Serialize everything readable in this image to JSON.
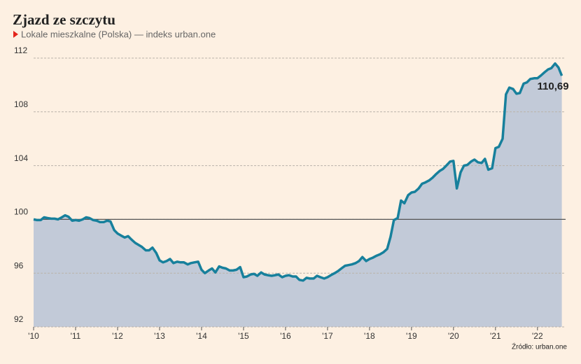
{
  "chart_data": {
    "type": "area",
    "title": "Zjazd ze szczytu",
    "subtitle": "Lokale mieszkalne (Polska) — indeks urban.one",
    "source": "Źródło: urban.one",
    "xlim": [
      2010,
      2022.67
    ],
    "ylim": [
      92,
      112
    ],
    "xticks": [
      {
        "value": 2010,
        "label": "'10"
      },
      {
        "value": 2011,
        "label": "'11"
      },
      {
        "value": 2012,
        "label": "'12"
      },
      {
        "value": 2013,
        "label": "'13"
      },
      {
        "value": 2014,
        "label": "'14"
      },
      {
        "value": 2015,
        "label": "'15"
      },
      {
        "value": 2016,
        "label": "'16"
      },
      {
        "value": 2017,
        "label": "'17"
      },
      {
        "value": 2018,
        "label": "'18"
      },
      {
        "value": 2019,
        "label": "'19"
      },
      {
        "value": 2020,
        "label": "'20"
      },
      {
        "value": 2021,
        "label": "'21"
      },
      {
        "value": 2022,
        "label": "'22"
      }
    ],
    "yticks": [
      92,
      96,
      100,
      104,
      108,
      112
    ],
    "grid": true,
    "reference_line": 100,
    "line_color": "#17809c",
    "fill_color": "#c2cad8",
    "annotations": [
      {
        "text": "110,69",
        "x": 2022.58,
        "y": 110.69
      }
    ],
    "x": [
      2010,
      2010.08,
      2010.17,
      2010.25,
      2010.33,
      2010.42,
      2010.5,
      2010.58,
      2010.67,
      2010.75,
      2010.83,
      2010.92,
      2011,
      2011.08,
      2011.17,
      2011.25,
      2011.33,
      2011.42,
      2011.5,
      2011.58,
      2011.67,
      2011.75,
      2011.83,
      2011.92,
      2012,
      2012.08,
      2012.17,
      2012.25,
      2012.33,
      2012.42,
      2012.5,
      2012.58,
      2012.67,
      2012.75,
      2012.83,
      2012.92,
      2013,
      2013.08,
      2013.17,
      2013.25,
      2013.33,
      2013.42,
      2013.5,
      2013.58,
      2013.67,
      2013.75,
      2013.83,
      2013.92,
      2014,
      2014.08,
      2014.17,
      2014.25,
      2014.33,
      2014.42,
      2014.5,
      2014.58,
      2014.67,
      2014.75,
      2014.83,
      2014.92,
      2015,
      2015.08,
      2015.17,
      2015.25,
      2015.33,
      2015.42,
      2015.5,
      2015.58,
      2015.67,
      2015.75,
      2015.83,
      2015.92,
      2016,
      2016.08,
      2016.17,
      2016.25,
      2016.33,
      2016.42,
      2016.5,
      2016.58,
      2016.67,
      2016.75,
      2016.83,
      2016.92,
      2017,
      2017.08,
      2017.17,
      2017.25,
      2017.33,
      2017.42,
      2017.5,
      2017.58,
      2017.67,
      2017.75,
      2017.83,
      2017.92,
      2018,
      2018.08,
      2018.17,
      2018.25,
      2018.33,
      2018.42,
      2018.5,
      2018.58,
      2018.67,
      2018.75,
      2018.83,
      2018.92,
      2019,
      2019.08,
      2019.17,
      2019.25,
      2019.33,
      2019.42,
      2019.5,
      2019.58,
      2019.67,
      2019.75,
      2019.83,
      2019.92,
      2020,
      2020.08,
      2020.17,
      2020.25,
      2020.33,
      2020.42,
      2020.5,
      2020.58,
      2020.67,
      2020.75,
      2020.83,
      2020.92,
      2021,
      2021.08,
      2021.17,
      2021.25,
      2021.33,
      2021.42,
      2021.5,
      2021.58,
      2021.67,
      2021.75,
      2021.83,
      2021.92,
      2022,
      2022.08,
      2022.17,
      2022.25,
      2022.33,
      2022.42,
      2022.5,
      2022.58
    ],
    "values": [
      100.0,
      99.95,
      99.95,
      100.15,
      100.1,
      100.05,
      100.05,
      100.0,
      100.15,
      100.3,
      100.2,
      99.9,
      99.95,
      99.9,
      100.0,
      100.15,
      100.1,
      99.95,
      99.9,
      99.8,
      99.8,
      99.9,
      99.85,
      99.2,
      98.95,
      98.8,
      98.65,
      98.75,
      98.5,
      98.25,
      98.1,
      97.95,
      97.7,
      97.7,
      97.9,
      97.5,
      96.95,
      96.8,
      96.9,
      97.05,
      96.75,
      96.85,
      96.8,
      96.8,
      96.65,
      96.75,
      96.8,
      96.85,
      96.25,
      96.0,
      96.2,
      96.35,
      96.05,
      96.5,
      96.4,
      96.35,
      96.2,
      96.2,
      96.25,
      96.45,
      95.7,
      95.75,
      95.9,
      95.95,
      95.8,
      96.05,
      95.9,
      95.85,
      95.8,
      95.85,
      95.9,
      95.7,
      95.8,
      95.85,
      95.75,
      95.75,
      95.5,
      95.45,
      95.65,
      95.6,
      95.6,
      95.8,
      95.7,
      95.6,
      95.7,
      95.85,
      96.0,
      96.15,
      96.35,
      96.55,
      96.6,
      96.65,
      96.75,
      96.9,
      97.2,
      96.9,
      97.05,
      97.15,
      97.3,
      97.4,
      97.55,
      97.8,
      98.7,
      99.95,
      100.1,
      101.4,
      101.2,
      101.8,
      102.0,
      102.05,
      102.3,
      102.65,
      102.75,
      102.9,
      103.1,
      103.35,
      103.6,
      103.75,
      104.0,
      104.3,
      104.35,
      102.3,
      103.5,
      104.0,
      104.05,
      104.3,
      104.45,
      104.25,
      104.2,
      104.5,
      103.7,
      103.8,
      105.3,
      105.4,
      106.0,
      109.3,
      109.8,
      109.7,
      109.35,
      109.4,
      110.1,
      110.2,
      110.45,
      110.5,
      110.5,
      110.7,
      110.95,
      111.15,
      111.25,
      111.6,
      111.3,
      110.69
    ]
  }
}
